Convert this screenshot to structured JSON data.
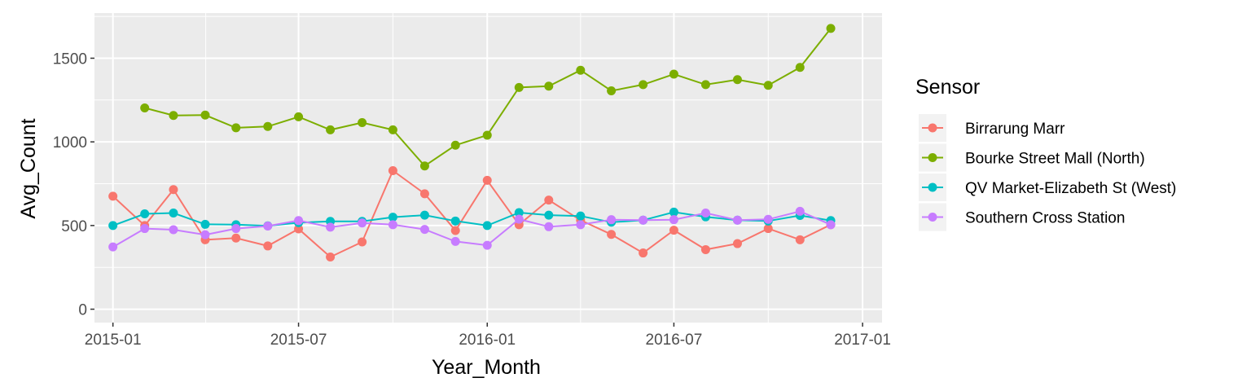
{
  "chart_data": {
    "type": "line",
    "xlabel": "Year_Month",
    "ylabel": "Avg_Count",
    "x_ticks": [
      "2015-01",
      "2015-07",
      "2016-01",
      "2016-07",
      "2017-01"
    ],
    "y_ticks": [
      0,
      500,
      1000,
      1500
    ],
    "ylim": [
      -80,
      1770
    ],
    "x_range": [
      "2014-12-14",
      "2017-01-20"
    ],
    "grid": true,
    "legend_title": "Sensor",
    "legend_position": "right",
    "x": [
      "2015-01",
      "2015-02",
      "2015-03",
      "2015-04",
      "2015-05",
      "2015-06",
      "2015-07",
      "2015-08",
      "2015-09",
      "2015-10",
      "2015-11",
      "2015-12",
      "2016-01",
      "2016-02",
      "2016-03",
      "2016-04",
      "2016-05",
      "2016-06",
      "2016-07",
      "2016-08",
      "2016-09",
      "2016-10",
      "2016-11",
      "2016-12"
    ],
    "series": [
      {
        "name": "Birrarung Marr",
        "color": "#F8766D",
        "values": [
          675,
          500,
          715,
          415,
          425,
          378,
          480,
          312,
          402,
          828,
          690,
          470,
          770,
          505,
          652,
          532,
          447,
          336,
          472,
          356,
          392,
          482,
          415,
          505
        ]
      },
      {
        "name": "Bourke Street Mall (North)",
        "color": "#7CAE00",
        "values": [
          null,
          1203,
          1158,
          1160,
          1084,
          1092,
          1150,
          1072,
          1115,
          1072,
          856,
          980,
          1040,
          1325,
          1333,
          1428,
          1305,
          1342,
          1405,
          1342,
          1372,
          1338,
          1445,
          1678
        ]
      },
      {
        "name": "QV Market-Elizabeth St (West)",
        "color": "#00BFC4",
        "values": [
          500,
          570,
          575,
          507,
          505,
          498,
          517,
          525,
          525,
          550,
          562,
          527,
          500,
          577,
          562,
          557,
          520,
          532,
          580,
          552,
          532,
          527,
          560,
          530
        ]
      },
      {
        "name": "Southern Cross Station",
        "color": "#C77CFF",
        "values": [
          372,
          482,
          475,
          445,
          482,
          497,
          530,
          490,
          515,
          505,
          477,
          405,
          382,
          538,
          493,
          505,
          535,
          532,
          535,
          575,
          532,
          537,
          585,
          505
        ]
      }
    ]
  }
}
